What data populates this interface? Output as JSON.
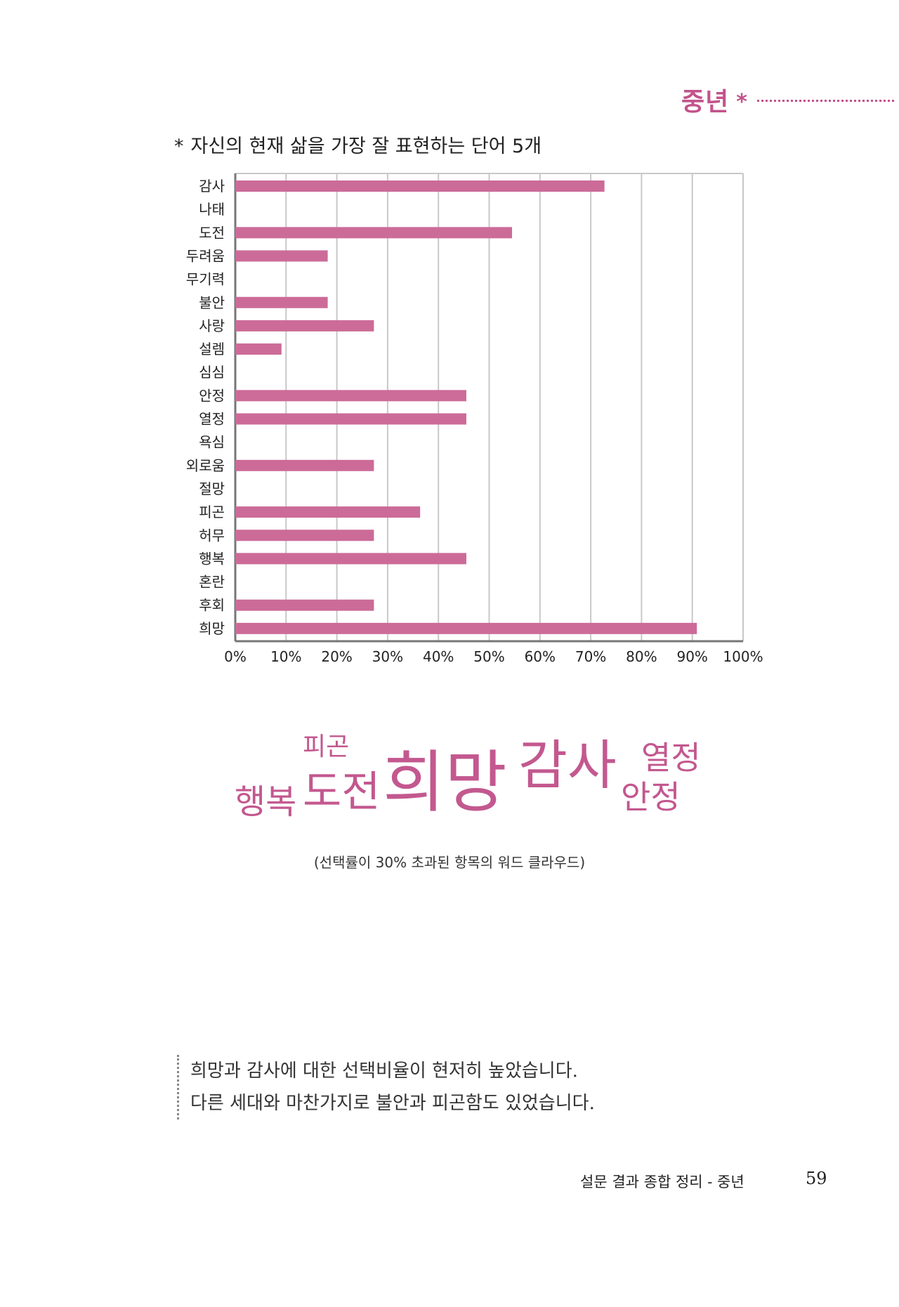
{
  "header": {
    "section_label": "중년",
    "section_star": "*"
  },
  "chart_title": {
    "marker": "*",
    "text": "자신의 현재 삶을 가장 잘 표현하는 단어 5개"
  },
  "chart_data": {
    "type": "bar",
    "orientation": "horizontal",
    "categories": [
      "감사",
      "나태",
      "도전",
      "두려움",
      "무기력",
      "불안",
      "사랑",
      "설렘",
      "심심",
      "안정",
      "열정",
      "욕심",
      "외로움",
      "절망",
      "피곤",
      "허무",
      "행복",
      "혼란",
      "후회",
      "희망"
    ],
    "values": [
      72.7,
      0,
      54.5,
      18.2,
      0,
      18.2,
      27.3,
      9.1,
      0,
      45.5,
      45.5,
      0,
      27.3,
      0,
      36.4,
      27.3,
      45.5,
      0,
      27.3,
      90.9
    ],
    "xlim": [
      0,
      100
    ],
    "x_ticks": [
      "0%",
      "10%",
      "20%",
      "30%",
      "40%",
      "50%",
      "60%",
      "70%",
      "80%",
      "90%",
      "100%"
    ],
    "grid": "vertical",
    "bar_color": "#cc6b98",
    "title": "",
    "xlabel": "",
    "ylabel": ""
  },
  "word_cloud": {
    "words": [
      "피곤",
      "행복",
      "도전",
      "희망",
      "감사",
      "열정",
      "안정"
    ],
    "color": "#c3588f",
    "caption": "(선택률이 30% 초과된 항목의 워드 클라우드)"
  },
  "summary": {
    "line1": "희망과 감사에 대한 선택비율이 현저히 높았습니다.",
    "line2": "다른 세대와 마찬가지로 불안과 피곤함도 있었습니다."
  },
  "footer": {
    "text": "설문 결과 종합 정리 - 중년",
    "page_number": "59"
  }
}
